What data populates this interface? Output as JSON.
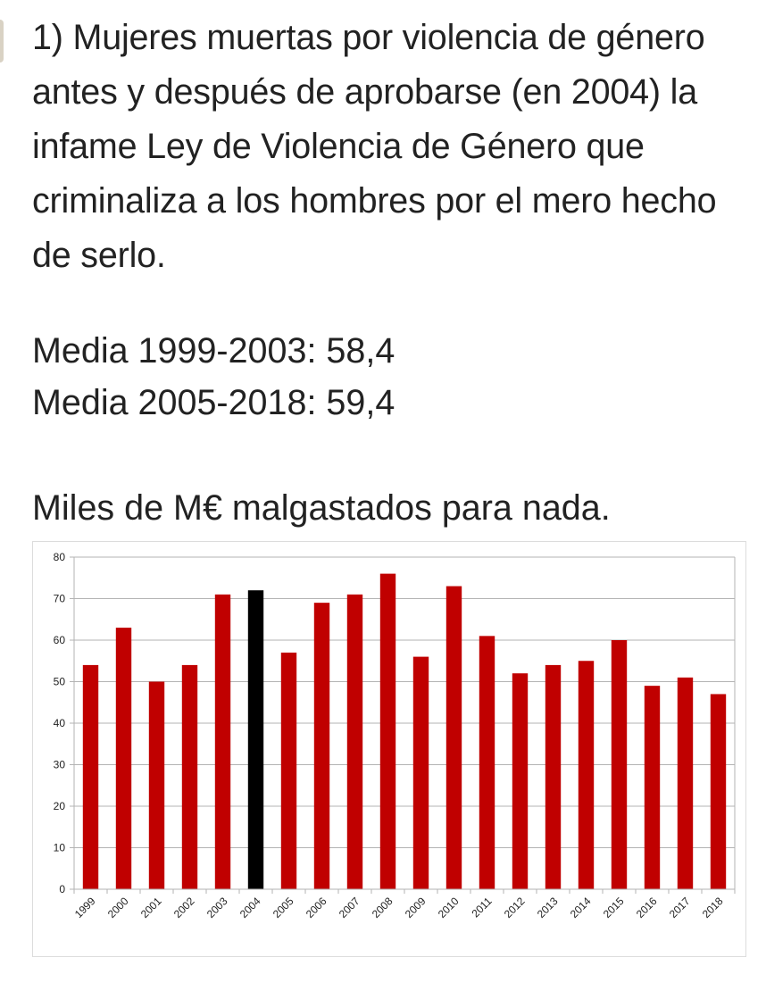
{
  "post": {
    "headline": "1) Mujeres muertas por violencia de género antes y después de aprobarse (en 2004) la infame Ley de Violencia de Género que criminaliza a los hombres por el mero hecho de serlo.",
    "stat_1": "Media 1999-2003: 58,4",
    "stat_2": "Media 2005-2018: 59,4",
    "tagline": "Miles de M€ malgastados para nada."
  },
  "colors": {
    "bar_default": "#c00000",
    "bar_highlight": "#000000",
    "grid": "#b3b3b3",
    "axis": "#b3b3b3"
  },
  "chart_data": {
    "type": "bar",
    "title": "",
    "xlabel": "",
    "ylabel": "",
    "categories": [
      "1999",
      "2000",
      "2001",
      "2002",
      "2003",
      "2004",
      "2005",
      "2006",
      "2007",
      "2008",
      "2009",
      "2010",
      "2011",
      "2012",
      "2013",
      "2014",
      "2015",
      "2016",
      "2017",
      "2018"
    ],
    "values": [
      54,
      63,
      50,
      54,
      71,
      72,
      57,
      69,
      71,
      76,
      56,
      73,
      61,
      52,
      54,
      55,
      60,
      49,
      51,
      47
    ],
    "highlight_category": "2004",
    "ylim": [
      0,
      80
    ],
    "yticks": [
      0,
      10,
      20,
      30,
      40,
      50,
      60,
      70,
      80
    ],
    "grid": true,
    "legend": "none"
  }
}
